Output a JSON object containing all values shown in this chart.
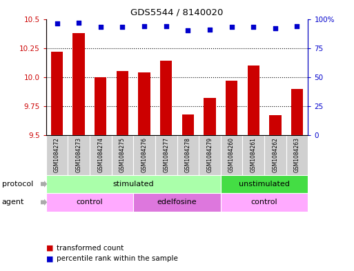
{
  "title": "GDS5544 / 8140020",
  "samples": [
    "GSM1084272",
    "GSM1084273",
    "GSM1084274",
    "GSM1084275",
    "GSM1084276",
    "GSM1084277",
    "GSM1084278",
    "GSM1084279",
    "GSM1084260",
    "GSM1084261",
    "GSM1084262",
    "GSM1084263"
  ],
  "bar_values": [
    10.22,
    10.38,
    10.0,
    10.05,
    10.04,
    10.14,
    9.68,
    9.82,
    9.97,
    10.1,
    9.67,
    9.9
  ],
  "dot_values": [
    96,
    97,
    93,
    93,
    94,
    94,
    90,
    91,
    93,
    93,
    92,
    94
  ],
  "ylim_left": [
    9.5,
    10.5
  ],
  "ylim_right": [
    0,
    100
  ],
  "yticks_left": [
    9.5,
    9.75,
    10.0,
    10.25,
    10.5
  ],
  "yticks_right": [
    0,
    25,
    50,
    75,
    100
  ],
  "bar_color": "#cc0000",
  "dot_color": "#0000cc",
  "protocol_groups": [
    {
      "label": "stimulated",
      "start": 0,
      "end": 8,
      "color": "#aaffaa"
    },
    {
      "label": "unstimulated",
      "start": 8,
      "end": 12,
      "color": "#44dd44"
    }
  ],
  "agent_groups": [
    {
      "label": "control",
      "start": 0,
      "end": 4,
      "color": "#ffaaff"
    },
    {
      "label": "edelfosine",
      "start": 4,
      "end": 8,
      "color": "#dd77dd"
    },
    {
      "label": "control",
      "start": 8,
      "end": 12,
      "color": "#ffaaff"
    }
  ],
  "legend_bar_label": "transformed count",
  "legend_dot_label": "percentile rank within the sample",
  "tick_label_color_left": "#cc0000",
  "tick_label_color_right": "#0000cc",
  "bar_base": 9.5,
  "sample_bg_color": "#d0d0d0",
  "fig_width": 5.13,
  "fig_height": 3.93,
  "dpi": 100
}
